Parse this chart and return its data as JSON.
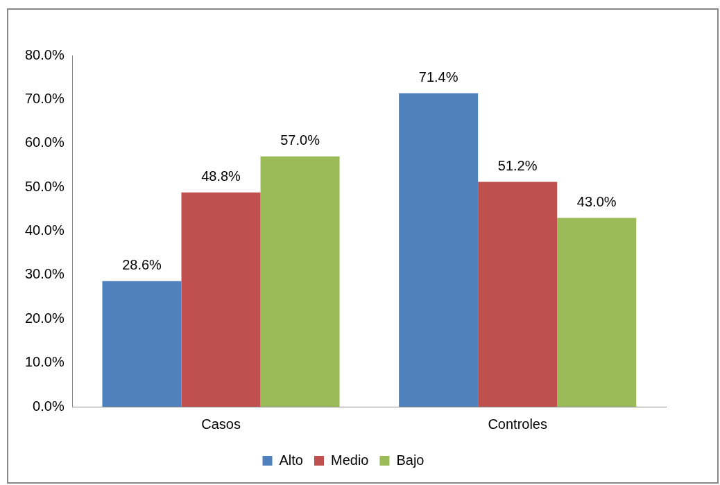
{
  "chart_data": {
    "type": "bar",
    "categories": [
      "Casos",
      "Controles"
    ],
    "series": [
      {
        "name": "Alto",
        "color": "#4f81bd",
        "values": [
          28.6,
          71.4
        ],
        "value_labels": [
          "28.6%",
          "71.4%"
        ]
      },
      {
        "name": "Medio",
        "color": "#c0504d",
        "values": [
          48.8,
          51.2
        ],
        "value_labels": [
          "48.8%",
          "51.2%"
        ]
      },
      {
        "name": "Bajo",
        "color": "#9bbb59",
        "values": [
          57.0,
          43.0
        ],
        "value_labels": [
          "57.0%",
          "43.0%"
        ]
      }
    ],
    "ylim": [
      0,
      80
    ],
    "yticks": [
      {
        "value": 0,
        "label": "0.0%"
      },
      {
        "value": 10,
        "label": "10.0%"
      },
      {
        "value": 20,
        "label": "20.0%"
      },
      {
        "value": 30,
        "label": "30.0%"
      },
      {
        "value": 40,
        "label": "40.0%"
      },
      {
        "value": 50,
        "label": "50.0%"
      },
      {
        "value": 60,
        "label": "60.0%"
      },
      {
        "value": 70,
        "label": "70.0%"
      },
      {
        "value": 80,
        "label": "80.0%"
      }
    ],
    "grid": false,
    "legend": "bottom"
  }
}
